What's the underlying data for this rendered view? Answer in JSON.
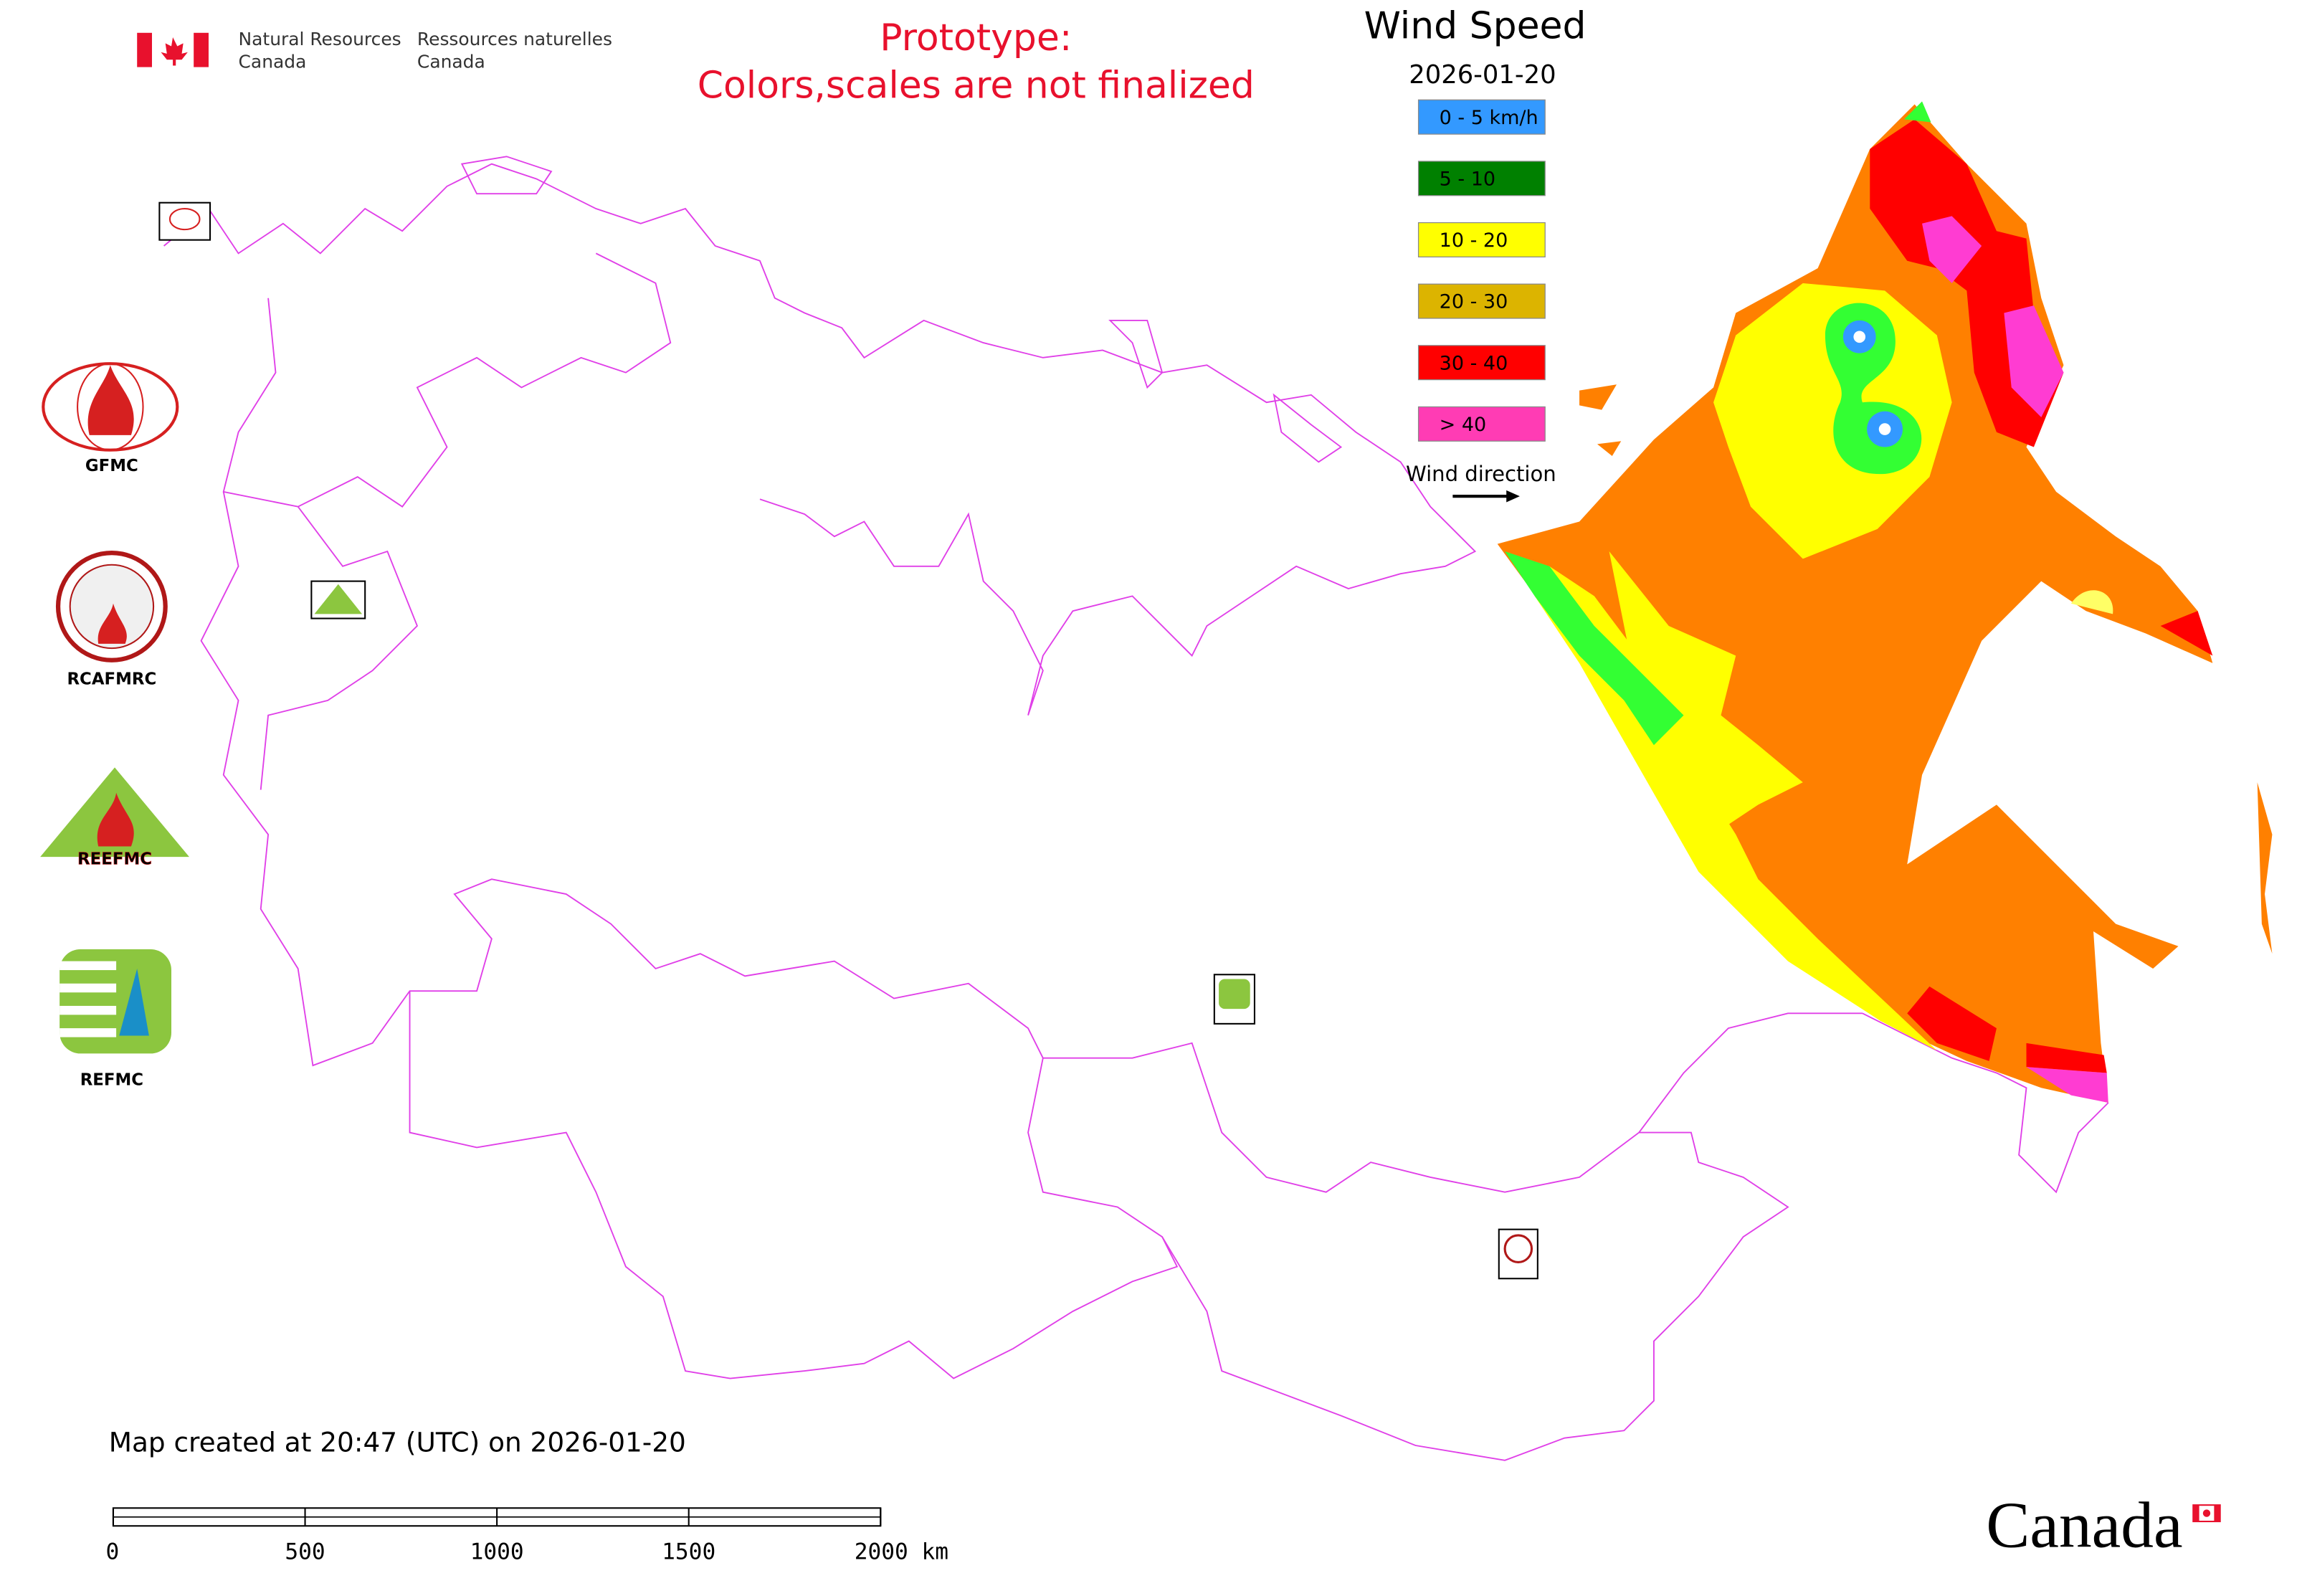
{
  "header": {
    "agency_en": [
      "Natural Resources",
      "Canada"
    ],
    "agency_fr": [
      "Ressources naturelles",
      "Canada"
    ],
    "notice": [
      "Prototype:",
      "Colors,scales are not finalized"
    ]
  },
  "legend": {
    "title": "Wind Speed",
    "date": "2026-01-20",
    "items": [
      {
        "label": "0 - 5 km/h",
        "color": "#3399ff"
      },
      {
        "label": "5 - 10",
        "color": "#008000"
      },
      {
        "label": "10 - 20",
        "color": "#ffff00"
      },
      {
        "label": "20 - 30",
        "color": "#dcb400"
      },
      {
        "label": "30 - 40",
        "color": "#ff0000"
      },
      {
        "label": "> 40",
        "color": "#ff3cb4"
      }
    ],
    "direction_label": "Wind direction"
  },
  "logos": [
    "GFMC",
    "RCAFMRC",
    "REEFMC",
    "REFMC"
  ],
  "footer": {
    "created": "Map created at 20:47 (UTC) on 2026-01-20",
    "scale_labels": [
      "0",
      "500",
      "1000",
      "1500",
      "2000 km"
    ],
    "wordmark": "Canada"
  }
}
